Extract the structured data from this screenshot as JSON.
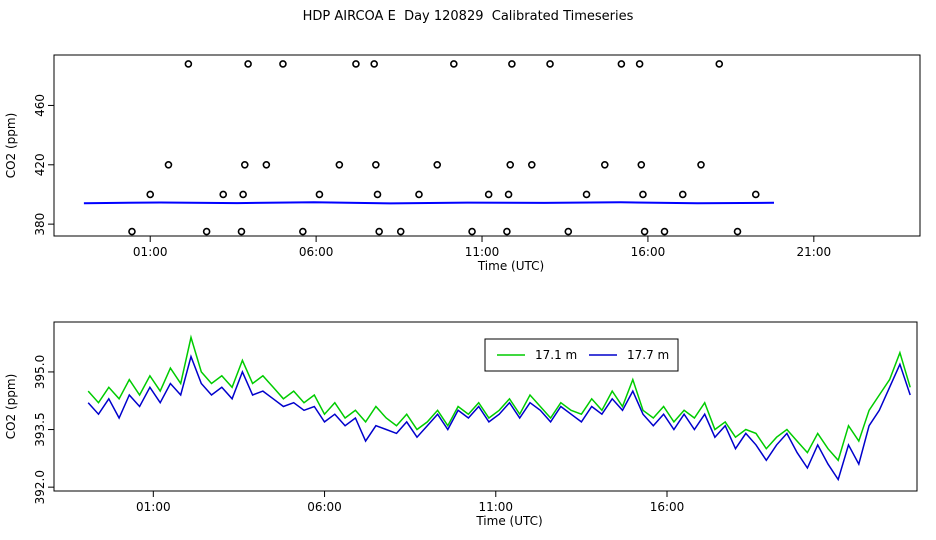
{
  "title": "HDP AIRCOA E  Day 120829  Calibrated Timeseries",
  "chart_data": [
    {
      "type": "scatter",
      "xlabel": "Time (UTC)",
      "ylabel": "CO2 (ppm)",
      "xlim": [
        -1.9,
        24.2
      ],
      "ylim": [
        372,
        494
      ],
      "x_ticks": [
        1,
        6,
        11,
        16,
        21
      ],
      "x_tick_labels": [
        "01:00",
        "06:00",
        "11:00",
        "16:00",
        "21:00"
      ],
      "y_ticks": [
        380,
        420,
        460
      ],
      "y_tick_labels": [
        "380",
        "420",
        "460"
      ],
      "grid": false,
      "legend": null,
      "series": [
        {
          "color": "#0000ff",
          "marker": "circle",
          "points": [
            [
              0.45,
              375
            ],
            [
              1.0,
              400
            ],
            [
              1.55,
              420
            ],
            [
              2.15,
              488
            ],
            [
              2.7,
              375
            ],
            [
              3.2,
              400
            ],
            [
              3.75,
              375
            ],
            [
              3.8,
              400
            ],
            [
              3.85,
              420
            ],
            [
              3.95,
              488
            ],
            [
              4.5,
              420
            ],
            [
              5.0,
              488
            ],
            [
              5.6,
              375
            ],
            [
              6.1,
              400
            ],
            [
              6.7,
              420
            ],
            [
              7.2,
              488
            ],
            [
              7.75,
              488
            ],
            [
              7.8,
              420
            ],
            [
              7.85,
              400
            ],
            [
              7.9,
              375
            ],
            [
              8.55,
              375
            ],
            [
              9.1,
              400
            ],
            [
              9.65,
              420
            ],
            [
              10.15,
              488
            ],
            [
              10.7,
              375
            ],
            [
              11.2,
              400
            ],
            [
              11.75,
              375
            ],
            [
              11.8,
              400
            ],
            [
              11.85,
              420
            ],
            [
              11.9,
              488
            ],
            [
              12.5,
              420
            ],
            [
              13.05,
              488
            ],
            [
              13.6,
              375
            ],
            [
              14.15,
              400
            ],
            [
              14.7,
              420
            ],
            [
              15.2,
              488
            ],
            [
              15.75,
              488
            ],
            [
              15.8,
              420
            ],
            [
              15.85,
              400
            ],
            [
              15.9,
              375
            ],
            [
              16.5,
              375
            ],
            [
              17.05,
              400
            ],
            [
              17.6,
              420
            ],
            [
              18.15,
              488
            ],
            [
              18.7,
              375
            ],
            [
              19.25,
              400
            ]
          ]
        },
        {
          "color": "#0000ff",
          "marker": "line",
          "x_start": -1.0,
          "x_end": 19.8,
          "level": 394.3,
          "note_values": [
            394.1,
            394.6,
            394.2,
            394.8,
            394.0,
            394.5,
            394.3,
            394.7,
            394.1,
            394.4
          ]
        }
      ]
    },
    {
      "type": "line",
      "xlabel": "Time (UTC)",
      "ylabel": "CO2 (ppm)",
      "xlim": [
        -1.9,
        23.3
      ],
      "ylim": [
        391.9,
        396.3
      ],
      "x_ticks": [
        1,
        6,
        11,
        16
      ],
      "x_tick_labels": [
        "01:00",
        "06:00",
        "11:00",
        "16:00"
      ],
      "y_ticks": [
        392.0,
        393.5,
        395.0
      ],
      "y_tick_labels": [
        "392.0",
        "393.5",
        "395.0"
      ],
      "grid": false,
      "legend": "top-center",
      "series": [
        {
          "name": "17.1 m",
          "color": "#00cc00",
          "x": [
            -0.9,
            -0.6,
            -0.3,
            0.0,
            0.3,
            0.6,
            0.9,
            1.2,
            1.5,
            1.8,
            2.1,
            2.4,
            2.7,
            3.0,
            3.3,
            3.6,
            3.9,
            4.2,
            4.5,
            4.8,
            5.1,
            5.4,
            5.7,
            6.0,
            6.3,
            6.6,
            6.9,
            7.2,
            7.5,
            7.8,
            8.1,
            8.4,
            8.7,
            9.0,
            9.3,
            9.6,
            9.9,
            10.2,
            10.5,
            10.8,
            11.1,
            11.4,
            11.7,
            12.0,
            12.3,
            12.6,
            12.9,
            13.2,
            13.5,
            13.8,
            14.1,
            14.4,
            14.7,
            15.0,
            15.3,
            15.6,
            15.9,
            16.2,
            16.5,
            16.8,
            17.1,
            17.4,
            17.7,
            18.0,
            18.3,
            18.6,
            18.9,
            19.2,
            19.5,
            19.8,
            20.1,
            20.4,
            20.7,
            21.0,
            21.3,
            21.6,
            21.9,
            22.2,
            22.5,
            22.8,
            23.1
          ],
          "values": [
            394.5,
            394.2,
            394.6,
            394.3,
            394.8,
            394.4,
            394.9,
            394.5,
            395.1,
            394.7,
            395.9,
            395.0,
            394.7,
            394.9,
            394.6,
            395.3,
            394.7,
            394.9,
            394.6,
            394.3,
            394.5,
            394.2,
            394.4,
            393.9,
            394.2,
            393.8,
            394.0,
            393.7,
            394.1,
            393.8,
            393.6,
            393.9,
            393.5,
            393.7,
            394.0,
            393.6,
            394.1,
            393.9,
            394.2,
            393.8,
            394.0,
            394.3,
            393.9,
            394.4,
            394.1,
            393.8,
            394.2,
            394.0,
            393.9,
            394.3,
            394.0,
            394.5,
            394.1,
            394.8,
            394.0,
            393.8,
            394.1,
            393.7,
            394.0,
            393.8,
            394.2,
            393.5,
            393.7,
            393.3,
            393.5,
            393.4,
            393.0,
            393.3,
            393.5,
            393.2,
            392.9,
            393.4,
            393.0,
            392.7,
            393.6,
            393.2,
            394.0,
            394.4,
            394.8,
            395.5,
            394.6
          ]
        },
        {
          "name": "17.7 m",
          "color": "#0000cc",
          "x": [
            -0.9,
            -0.6,
            -0.3,
            0.0,
            0.3,
            0.6,
            0.9,
            1.2,
            1.5,
            1.8,
            2.1,
            2.4,
            2.7,
            3.0,
            3.3,
            3.6,
            3.9,
            4.2,
            4.5,
            4.8,
            5.1,
            5.4,
            5.7,
            6.0,
            6.3,
            6.6,
            6.9,
            7.2,
            7.5,
            7.8,
            8.1,
            8.4,
            8.7,
            9.0,
            9.3,
            9.6,
            9.9,
            10.2,
            10.5,
            10.8,
            11.1,
            11.4,
            11.7,
            12.0,
            12.3,
            12.6,
            12.9,
            13.2,
            13.5,
            13.8,
            14.1,
            14.4,
            14.7,
            15.0,
            15.3,
            15.6,
            15.9,
            16.2,
            16.5,
            16.8,
            17.1,
            17.4,
            17.7,
            18.0,
            18.3,
            18.6,
            18.9,
            19.2,
            19.5,
            19.8,
            20.1,
            20.4,
            20.7,
            21.0,
            21.3,
            21.6,
            21.9,
            22.2,
            22.5,
            22.8,
            23.1
          ],
          "values": [
            394.2,
            393.9,
            394.3,
            393.8,
            394.4,
            394.1,
            394.6,
            394.2,
            394.7,
            394.4,
            395.4,
            394.7,
            394.4,
            394.6,
            394.3,
            395.0,
            394.4,
            394.5,
            394.3,
            394.1,
            394.2,
            394.0,
            394.1,
            393.7,
            393.9,
            393.6,
            393.8,
            393.2,
            393.6,
            393.5,
            393.4,
            393.7,
            393.3,
            393.6,
            393.9,
            393.5,
            394.0,
            393.8,
            394.1,
            393.7,
            393.9,
            394.2,
            393.8,
            394.2,
            394.0,
            393.7,
            394.1,
            393.9,
            393.7,
            394.1,
            393.9,
            394.3,
            394.0,
            394.5,
            393.9,
            393.6,
            393.9,
            393.5,
            393.9,
            393.5,
            393.9,
            393.3,
            393.6,
            393.0,
            393.4,
            393.1,
            392.7,
            393.1,
            393.4,
            392.9,
            392.5,
            393.1,
            392.6,
            392.2,
            393.1,
            392.6,
            393.6,
            394.0,
            394.6,
            395.2,
            394.4
          ]
        }
      ]
    }
  ]
}
